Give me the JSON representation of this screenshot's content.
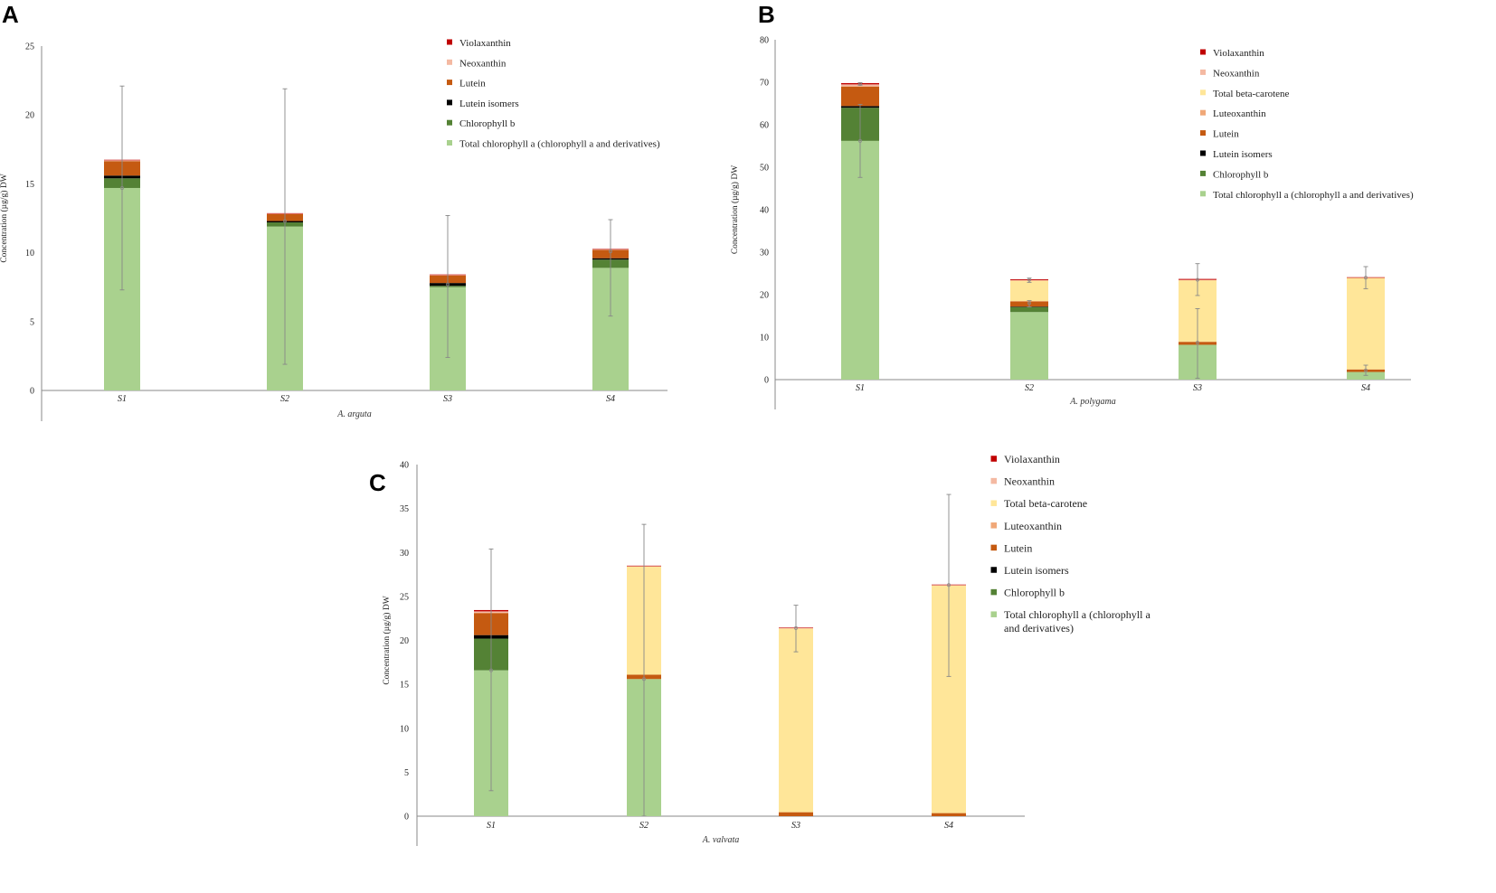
{
  "colors": {
    "Violaxanthin": "#c00000",
    "Neoxanthin": "#f4b9a2",
    "Total beta-carotene": "#ffe699",
    "Luteoxanthin": "#f0a878",
    "Lutein": "#c55a11",
    "Lutein isomers": "#000000",
    "Chlorophyll b": "#548235",
    "Total chlorophyll a": "#a9d18e",
    "error_bar": "#888888"
  },
  "chart_data": [
    {
      "panel": "A",
      "type": "bar",
      "stacked": true,
      "xlabel": "A. arguta",
      "ylabel": "Concentration (µg/g) DW",
      "ylim": [
        0,
        25
      ],
      "yticks": [
        0,
        5,
        10,
        15,
        20,
        25
      ],
      "categories": [
        "S1",
        "S2",
        "S3",
        "S4"
      ],
      "series": [
        {
          "name": "Total chlorophyll a (chlorophyll a and derivatives)",
          "key": "Total chlorophyll a",
          "values": [
            14.7,
            11.9,
            7.5,
            8.9
          ]
        },
        {
          "name": "Chlorophyll b",
          "key": "Chlorophyll b",
          "values": [
            0.7,
            0.3,
            0.1,
            0.6
          ]
        },
        {
          "name": "Lutein isomers",
          "key": "Lutein isomers",
          "values": [
            0.2,
            0.1,
            0.2,
            0.1
          ]
        },
        {
          "name": "Lutein",
          "key": "Lutein",
          "values": [
            1.05,
            0.5,
            0.55,
            0.6
          ]
        },
        {
          "name": "Neoxanthin",
          "key": "Neoxanthin",
          "values": [
            0.07,
            0.05,
            0.05,
            0.05
          ]
        },
        {
          "name": "Violaxanthin",
          "key": "Violaxanthin",
          "values": [
            0.03,
            0.02,
            0.02,
            0.02
          ]
        }
      ],
      "error_bars": [
        {
          "center": 14.7,
          "low": 7.3,
          "high": 22.1
        },
        {
          "center": 12.3,
          "low": 1.9,
          "high": 21.9
        },
        {
          "center": 7.7,
          "low": 2.4,
          "high": 12.7
        },
        {
          "center": 10.1,
          "low": 5.4,
          "high": 12.4
        }
      ],
      "legend": [
        "Violaxanthin",
        "Neoxanthin",
        "Lutein",
        "Lutein isomers",
        "Chlorophyll b",
        "Total chlorophyll a (chlorophyll a and derivatives)"
      ]
    },
    {
      "panel": "B",
      "type": "bar",
      "stacked": true,
      "xlabel": "A. polygama",
      "ylabel": "Concentration (µg/g) DW",
      "ylim": [
        0,
        80
      ],
      "yticks": [
        0,
        10,
        20,
        30,
        40,
        50,
        60,
        70,
        80
      ],
      "categories": [
        "S1",
        "S2",
        "S3",
        "S4"
      ],
      "series": [
        {
          "name": "Total chlorophyll a (chlorophyll a and derivatives)",
          "key": "Total chlorophyll a",
          "values": [
            56.2,
            15.9,
            8.2,
            1.8
          ]
        },
        {
          "name": "Chlorophyll b",
          "key": "Chlorophyll b",
          "values": [
            7.8,
            1.2,
            0,
            0
          ]
        },
        {
          "name": "Lutein isomers",
          "key": "Lutein isomers",
          "values": [
            0.4,
            0.1,
            0,
            0
          ]
        },
        {
          "name": "Lutein",
          "key": "Lutein",
          "values": [
            4.6,
            1.2,
            0.7,
            0.6
          ]
        },
        {
          "name": "Luteoxanthin",
          "key": "Luteoxanthin",
          "values": [
            0.1,
            0.1,
            0,
            0
          ]
        },
        {
          "name": "Total beta-carotene",
          "key": "Total beta-carotene",
          "values": [
            0,
            4.8,
            14.5,
            21.6
          ]
        },
        {
          "name": "Neoxanthin",
          "key": "Neoxanthin",
          "values": [
            0.4,
            0.1,
            0.1,
            0.05
          ]
        },
        {
          "name": "Violaxanthin",
          "key": "Violaxanthin",
          "values": [
            0.3,
            0.2,
            0.2,
            0.05
          ]
        }
      ],
      "error_bars": [
        {
          "center": 56.2,
          "low": 47.6,
          "high": 64.8
        },
        {
          "center": 18.0,
          "low": 17.1,
          "high": 18.6
        },
        {
          "center": 8.7,
          "low": 0.3,
          "high": 16.7
        },
        {
          "center": 2.2,
          "low": 1.0,
          "high": 3.4
        },
        {
          "center": 69.6,
          "low": 69.3,
          "high": 69.9
        },
        {
          "center": 23.5,
          "low": 22.9,
          "high": 23.9
        },
        {
          "center": 23.5,
          "low": 19.8,
          "high": 27.3
        },
        {
          "center": 24.0,
          "low": 21.4,
          "high": 26.6
        }
      ],
      "error_bar_positions": [
        0,
        1,
        2,
        3,
        0,
        1,
        2,
        3
      ],
      "legend": [
        "Violaxanthin",
        "Neoxanthin",
        "Total beta-carotene",
        "Luteoxanthin",
        "Lutein",
        "Lutein isomers",
        "Chlorophyll b",
        "Total chlorophyll a (chlorophyll a and derivatives)"
      ]
    },
    {
      "panel": "C",
      "type": "bar",
      "stacked": true,
      "xlabel": "A. valvata",
      "ylabel": "Concentration (µg/g) DW",
      "ylim": [
        0,
        40
      ],
      "yticks": [
        0,
        5,
        10,
        15,
        20,
        25,
        30,
        35,
        40
      ],
      "categories": [
        "S1",
        "S2",
        "S3",
        "S4"
      ],
      "series": [
        {
          "name": "Total chlorophyll a (chlorophyll a and derivatives)",
          "key": "Total chlorophyll a",
          "values": [
            16.6,
            15.6,
            0,
            0
          ]
        },
        {
          "name": "Chlorophyll b",
          "key": "Chlorophyll b",
          "values": [
            3.6,
            0,
            0,
            0
          ]
        },
        {
          "name": "Lutein isomers",
          "key": "Lutein isomers",
          "values": [
            0.4,
            0,
            0,
            0
          ]
        },
        {
          "name": "Lutein",
          "key": "Lutein",
          "values": [
            2.5,
            0.5,
            0.45,
            0.35
          ]
        },
        {
          "name": "Luteoxanthin",
          "key": "Luteoxanthin",
          "values": [
            0.05,
            0,
            0,
            0
          ]
        },
        {
          "name": "Total beta-carotene",
          "key": "Total beta-carotene",
          "values": [
            0,
            12.3,
            20.9,
            25.9
          ]
        },
        {
          "name": "Neoxanthin",
          "key": "Neoxanthin",
          "values": [
            0.15,
            0.05,
            0.05,
            0.05
          ]
        },
        {
          "name": "Violaxanthin",
          "key": "Violaxanthin",
          "values": [
            0.15,
            0.05,
            0.05,
            0.05
          ]
        }
      ],
      "error_bars": [
        {
          "center": 16.6,
          "low": 2.9,
          "high": 30.4
        },
        {
          "center": 15.6,
          "low": 0.0,
          "high": 33.2
        },
        {
          "center": 21.4,
          "low": 18.7,
          "high": 24.0
        },
        {
          "center": 26.3,
          "low": 15.9,
          "high": 36.6
        }
      ],
      "legend": [
        "Violaxanthin",
        "Neoxanthin",
        "Total beta-carotene",
        "Luteoxanthin",
        "Lutein",
        "Lutein isomers",
        "Chlorophyll b",
        "Total chlorophyll a (chlorophyll a and derivatives)"
      ],
      "legend_last_wrapped": [
        "Total chlorophyll a (chlorophyll a",
        "and derivatives)"
      ]
    }
  ]
}
